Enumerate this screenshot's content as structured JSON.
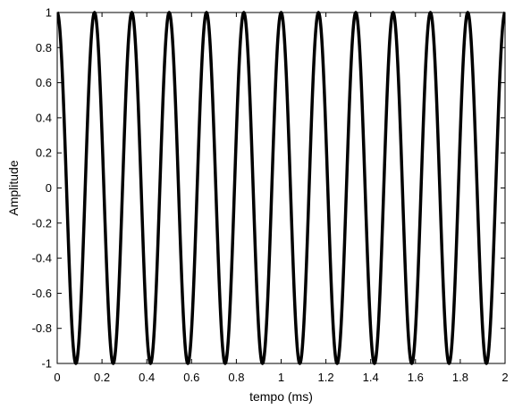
{
  "chart_data": {
    "type": "line",
    "title": "",
    "xlabel": "tempo (ms)",
    "ylabel": "Amplitude",
    "xlim": [
      0,
      2
    ],
    "ylim": [
      -1,
      1
    ],
    "xticks": [
      0,
      0.2,
      0.4,
      0.6,
      0.8,
      1,
      1.2,
      1.4,
      1.6,
      1.8,
      2
    ],
    "xtick_labels": [
      "0",
      "0.2",
      "0.4",
      "0.6",
      "0.8",
      "1",
      "1.2",
      "1.4",
      "1.6",
      "1.8",
      "2"
    ],
    "yticks": [
      -1,
      -0.8,
      -0.6,
      -0.4,
      -0.2,
      0,
      0.2,
      0.4,
      0.6,
      0.8,
      1
    ],
    "ytick_labels": [
      "-1",
      "-0.8",
      "-0.6",
      "-0.4",
      "-0.2",
      "0",
      "0.2",
      "0.4",
      "0.6",
      "0.8",
      "1"
    ],
    "grid": false,
    "legend": false,
    "line_color": "#000000",
    "series": [
      {
        "function": "cosine",
        "amplitude": 1,
        "frequency_khz": 6,
        "x_start": 0,
        "x_end": 2
      }
    ]
  }
}
